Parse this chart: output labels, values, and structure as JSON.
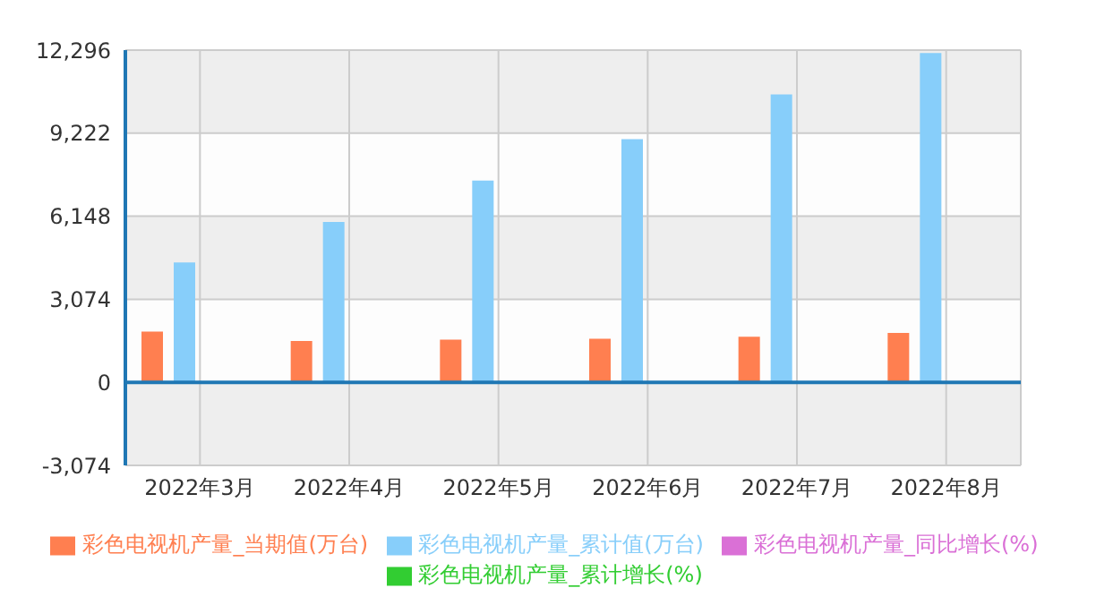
{
  "chart_data": {
    "type": "bar",
    "categories": [
      "2022年3月",
      "2022年4月",
      "2022年5月",
      "2022年6月",
      "2022年7月",
      "2022年8月"
    ],
    "series": [
      {
        "name": "彩色电视机产量_当期值(万台)",
        "color": "#ff7f50",
        "values": [
          1880,
          1530,
          1580,
          1610,
          1690,
          1830
        ]
      },
      {
        "name": "彩色电视机产量_累计值(万台)",
        "color": "#87cefa",
        "values": [
          4440,
          5940,
          7470,
          9000,
          10660,
          12190
        ]
      },
      {
        "name": "彩色电视机产量_同比增长(%)",
        "color": "#da70d6",
        "values": [
          0,
          0,
          0,
          0,
          0,
          0
        ]
      },
      {
        "name": "彩色电视机产量_累计增长(%)",
        "color": "#32cd32",
        "values": [
          0,
          0,
          0,
          0,
          0,
          0
        ]
      }
    ],
    "ylim": [
      -3074,
      12296
    ],
    "yticks": [
      {
        "value": -3074,
        "label": "-3,074"
      },
      0,
      {
        "value": 3074,
        "label": "3,074"
      },
      {
        "value": 6148,
        "label": "6,148"
      },
      {
        "value": 9222,
        "label": "9,222"
      },
      {
        "value": 12296,
        "label": "12,296"
      }
    ],
    "ref_lines": [
      {
        "axis": "y",
        "value": 0,
        "color": "#1f77b4"
      }
    ],
    "grid": true,
    "legend": "bottom"
  }
}
